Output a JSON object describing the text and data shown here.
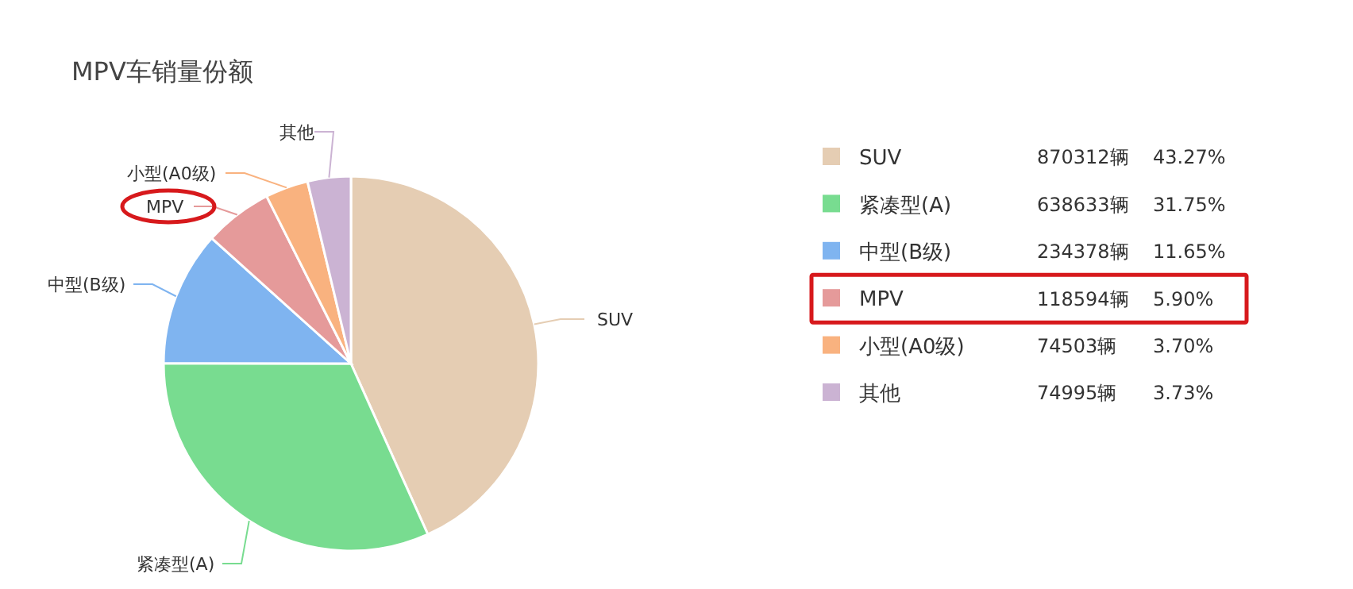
{
  "chart_data": {
    "type": "pie",
    "title": "MPV车销量份额",
    "categories": [
      "SUV",
      "紧凑型(A)",
      "中型(B级)",
      "MPV",
      "小型(A0级)",
      "其他"
    ],
    "values": [
      43.27,
      31.75,
      11.65,
      5.9,
      3.7,
      3.73
    ],
    "colors": [
      "#e5cdb3",
      "#78dc90",
      "#7fb4f0",
      "#e59a9a",
      "#f9b27f",
      "#cbb3d3"
    ],
    "value_labels": [
      "870312辆 43.27%",
      "638633辆 31.75%",
      "234378辆 11.65%",
      "118594辆 5.90%",
      "74503辆 3.70%",
      "74995辆 3.73%"
    ],
    "legend": "right"
  }
}
